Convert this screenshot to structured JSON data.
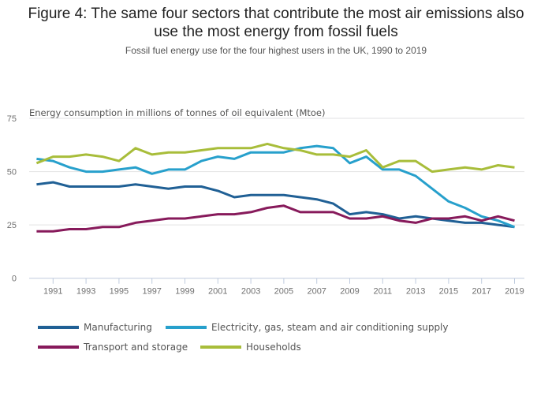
{
  "chart_data": {
    "type": "line",
    "title": "Figure 4: The same four sectors that contribute the most air emissions also use the most energy from fossil fuels",
    "title_line1": "Figure 4: The same four sectors that contribute the most air emissions also",
    "title_line2": "use the most energy from fossil fuels",
    "subtitle": "Fossil fuel energy use for the four highest users in the UK, 1990 to 2019",
    "ylabel": "Energy consumption in millions of tonnes of oil equivalent (Mtoe)",
    "xlabel": "",
    "ylim": [
      0,
      75
    ],
    "yticks": [
      0,
      25,
      50,
      75
    ],
    "xticks": [
      "1991",
      "1993",
      "1995",
      "1997",
      "1999",
      "2001",
      "2003",
      "2005",
      "2007",
      "2009",
      "2011",
      "2013",
      "2015",
      "2017",
      "2019"
    ],
    "grid": true,
    "legend_position": "bottom",
    "x": [
      1990,
      1991,
      1992,
      1993,
      1994,
      1995,
      1996,
      1997,
      1998,
      1999,
      2000,
      2001,
      2002,
      2003,
      2004,
      2005,
      2006,
      2007,
      2008,
      2009,
      2010,
      2011,
      2012,
      2013,
      2014,
      2015,
      2016,
      2017,
      2018,
      2019
    ],
    "series": [
      {
        "name": "Manufacturing",
        "color": "#206095",
        "values": [
          44,
          45,
          43,
          43,
          43,
          43,
          44,
          43,
          42,
          43,
          43,
          41,
          38,
          39,
          39,
          39,
          38,
          37,
          35,
          30,
          31,
          30,
          28,
          29,
          28,
          27,
          26,
          26,
          25,
          24
        ]
      },
      {
        "name": "Electricity, gas, steam and air conditioning supply",
        "color": "#27a0cc",
        "values": [
          56,
          55,
          52,
          50,
          50,
          51,
          52,
          49,
          51,
          51,
          55,
          57,
          56,
          59,
          59,
          59,
          61,
          62,
          61,
          54,
          57,
          51,
          51,
          48,
          42,
          36,
          33,
          29,
          27,
          24
        ]
      },
      {
        "name": "Transport and storage",
        "color": "#871a5b",
        "values": [
          22,
          22,
          23,
          23,
          24,
          24,
          26,
          27,
          28,
          28,
          29,
          30,
          30,
          31,
          33,
          34,
          31,
          31,
          31,
          28,
          28,
          29,
          27,
          26,
          28,
          28,
          29,
          27,
          29,
          27
        ]
      },
      {
        "name": "Households",
        "color": "#a8bd3a",
        "values": [
          54,
          57,
          57,
          58,
          57,
          55,
          61,
          58,
          59,
          59,
          60,
          61,
          61,
          61,
          63,
          61,
          60,
          58,
          58,
          57,
          60,
          52,
          55,
          55,
          50,
          51,
          52,
          51,
          53,
          52
        ]
      }
    ]
  }
}
